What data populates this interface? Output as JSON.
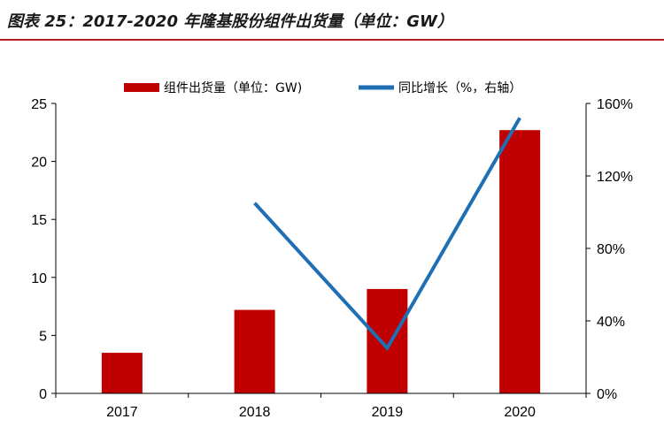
{
  "figure_title": "图表 25：2017-2020 年隆基股份组件出货量（单位：GW）",
  "chart_data": {
    "type": "bar",
    "categories": [
      "2017",
      "2018",
      "2019",
      "2020"
    ],
    "series": [
      {
        "name": "组件出货量（单位：GW)",
        "type": "bar",
        "axis": "left",
        "values": [
          3.5,
          7.2,
          9.0,
          22.7
        ]
      },
      {
        "name": "同比增长（%，右轴）",
        "type": "line",
        "axis": "right",
        "values": [
          null,
          1.05,
          0.25,
          1.52
        ]
      }
    ],
    "y_left": {
      "ylim": [
        0,
        25
      ],
      "ticks": [
        "0",
        "5",
        "10",
        "15",
        "20",
        "25"
      ]
    },
    "y_right": {
      "ylim": [
        0,
        1.6
      ],
      "ticks": [
        "0%",
        "40%",
        "80%",
        "120%",
        "160%"
      ]
    },
    "legend_position": "top",
    "grid": false,
    "colors": {
      "bar": "#c00000",
      "line": "#1f6fb5",
      "title_rule": "#b22222"
    }
  }
}
